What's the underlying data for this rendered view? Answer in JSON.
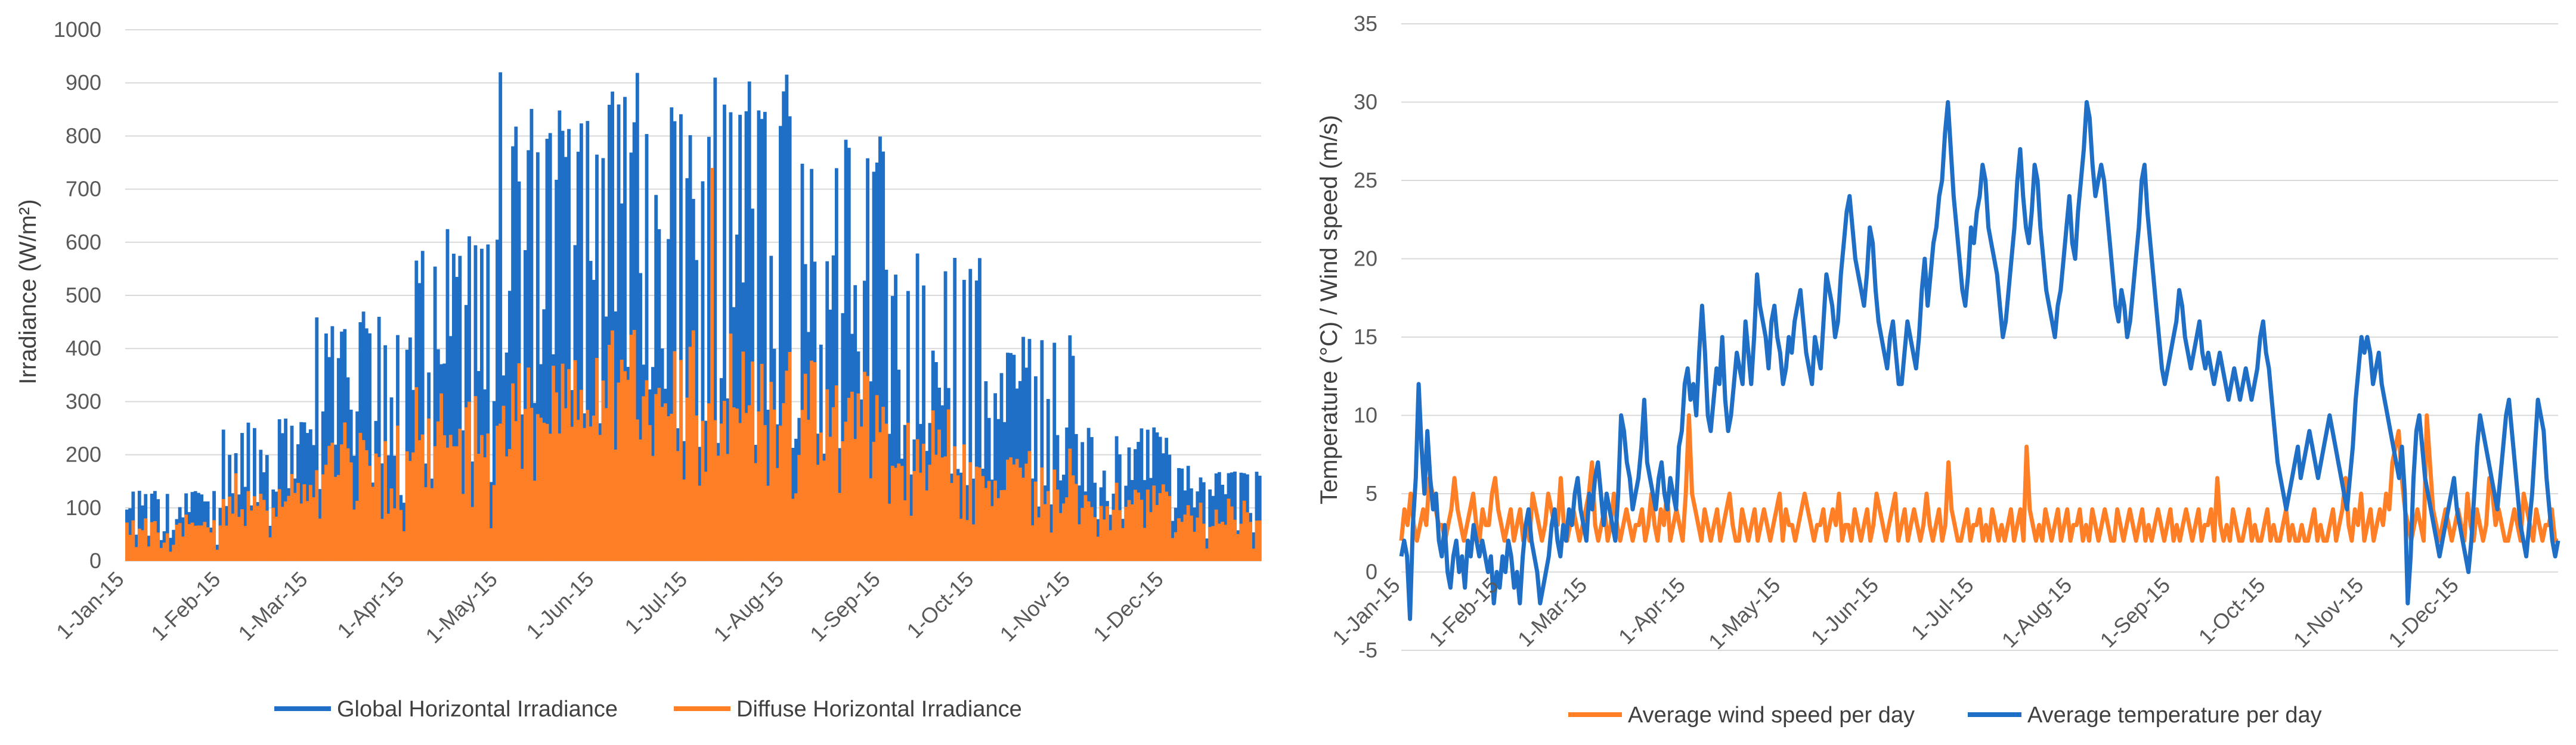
{
  "colors": {
    "blue": "#1f6fc6",
    "orange": "#ff7f27",
    "grid": "#d9d9d9",
    "text": "#595959"
  },
  "chart_data": [
    {
      "type": "area",
      "title": "",
      "xlabel": "",
      "ylabel": "Irradiance (W/m²)",
      "ylim": [
        0,
        1000
      ],
      "y_ticks": [
        0,
        100,
        200,
        300,
        400,
        500,
        600,
        700,
        800,
        900,
        1000
      ],
      "x_tick_labels": [
        "1-Jan-15",
        "1-Feb-15",
        "1-Mar-15",
        "1-Apr-15",
        "1-May-15",
        "1-Jun-15",
        "1-Jul-15",
        "1-Aug-15",
        "1-Sep-15",
        "1-Oct-15",
        "1-Nov-15",
        "1-Dec-15"
      ],
      "x_tick_days": [
        0,
        31,
        59,
        90,
        120,
        151,
        181,
        212,
        243,
        273,
        304,
        334
      ],
      "days": 365,
      "series": [
        {
          "name": "Global Horizontal Irradiance",
          "color": "#1f6fc6",
          "monthly_typical_max": [
            120,
            240,
            420,
            560,
            760,
            830,
            820,
            720,
            520,
            380,
            230,
            160
          ],
          "peak": 925
        },
        {
          "name": "Diffuse Horizontal Irradiance",
          "color": "#ff7f27",
          "monthly_typical_max": [
            90,
            150,
            220,
            280,
            340,
            380,
            360,
            320,
            250,
            190,
            130,
            100
          ],
          "peak": 740
        }
      ],
      "legend": "bottom"
    },
    {
      "type": "line",
      "title": "",
      "xlabel": "",
      "ylabel": "Temperature (°C) / Wind speed (m/s)",
      "ylim": [
        -5,
        35
      ],
      "y_ticks": [
        -5,
        0,
        5,
        10,
        15,
        20,
        25,
        30,
        35
      ],
      "x_tick_labels": [
        "1-Jan-15",
        "1-Feb-15",
        "1-Mar-15",
        "1-Apr-15",
        "1-May-15",
        "1-Jun-15",
        "1-Jul-15",
        "1-Aug-15",
        "1-Sep-15",
        "1-Oct-15",
        "1-Nov-15",
        "1-Dec-15"
      ],
      "x_tick_days": [
        0,
        31,
        59,
        90,
        120,
        151,
        181,
        212,
        243,
        273,
        304,
        334
      ],
      "days": 365,
      "series": [
        {
          "name": "Average wind speed per day",
          "color": "#ff7f27",
          "values": [
            2,
            4,
            3,
            5,
            3,
            2,
            3,
            4,
            3,
            6,
            5,
            4,
            3,
            3,
            2,
            3,
            4,
            6,
            4,
            3,
            2,
            3,
            4,
            5,
            3,
            2,
            4,
            3,
            3,
            5,
            6,
            4,
            3,
            2,
            3,
            4,
            2,
            3,
            4,
            2,
            3,
            2,
            5,
            4,
            3,
            2,
            3,
            5,
            4,
            3,
            3,
            6,
            3,
            2,
            3,
            4,
            3,
            2,
            3,
            4,
            5,
            7,
            3,
            2,
            3,
            4,
            2,
            3,
            5,
            3,
            2,
            3,
            4,
            3,
            2,
            3,
            3,
            4,
            2,
            3,
            5,
            3,
            2,
            4,
            3,
            5,
            2,
            3,
            4,
            3,
            2,
            5,
            10,
            5,
            4,
            3,
            2,
            4,
            3,
            2,
            3,
            4,
            2,
            3,
            4,
            5,
            3,
            2,
            2,
            4,
            3,
            2,
            3,
            4,
            2,
            3,
            4,
            3,
            2,
            3,
            4,
            5,
            2,
            4,
            3,
            3,
            2,
            3,
            4,
            5,
            4,
            3,
            2,
            3,
            3,
            4,
            2,
            3,
            4,
            3,
            5,
            2,
            3,
            3,
            2,
            4,
            3,
            2,
            3,
            4,
            2,
            3,
            5,
            4,
            3,
            2,
            3,
            4,
            5,
            2,
            3,
            4,
            2,
            3,
            4,
            3,
            2,
            3,
            5,
            3,
            2,
            3,
            4,
            2,
            3,
            7,
            4,
            3,
            2,
            2,
            3,
            4,
            2,
            3,
            3,
            4,
            2,
            3,
            2,
            4,
            3,
            2,
            3,
            2,
            3,
            4,
            2,
            3,
            4,
            2,
            8,
            4,
            3,
            2,
            3,
            2,
            4,
            3,
            2,
            3,
            4,
            2,
            3,
            4,
            2,
            3,
            3,
            4,
            2,
            3,
            2,
            4,
            3,
            2,
            3,
            4,
            3,
            2,
            2,
            4,
            3,
            2,
            3,
            4,
            3,
            2,
            3,
            4,
            2,
            3,
            2,
            3,
            4,
            3,
            2,
            3,
            4,
            2,
            3,
            2,
            3,
            4,
            3,
            2,
            3,
            4,
            2,
            3,
            3,
            4,
            2,
            6,
            3,
            2,
            3,
            2,
            4,
            3,
            2,
            2,
            3,
            4,
            2,
            3,
            2,
            2,
            3,
            4,
            2,
            3,
            2,
            2,
            3,
            4,
            2,
            3,
            2,
            2,
            3,
            2,
            2,
            3,
            4,
            2,
            3,
            2,
            2,
            3,
            4,
            2,
            3,
            4,
            6,
            3,
            2,
            4,
            3,
            5,
            2,
            3,
            4,
            2,
            3,
            4,
            3,
            5,
            4,
            7,
            8,
            9,
            6,
            4,
            3,
            2,
            3,
            4,
            3,
            2,
            10,
            7,
            4,
            3,
            2,
            3,
            4,
            3,
            2,
            3,
            4,
            3,
            2,
            5,
            3,
            2,
            4,
            3,
            2,
            3,
            6,
            5,
            3,
            4,
            3,
            2,
            2,
            3,
            4,
            3,
            2,
            5,
            4,
            3,
            2,
            4,
            3,
            2,
            3,
            3,
            4,
            2,
            2
          ]
        },
        {
          "name": "Average temperature per day",
          "color": "#1f6fc6",
          "values": [
            1,
            2,
            1,
            -3,
            3,
            6,
            12,
            8,
            5,
            9,
            6,
            4,
            5,
            2,
            1,
            3,
            0,
            -1,
            1,
            2,
            0,
            1,
            -1,
            2,
            1,
            3,
            2,
            1,
            2,
            1,
            0,
            1,
            -2,
            0,
            -1,
            1,
            0,
            2,
            1,
            -1,
            0,
            -2,
            1,
            3,
            4,
            2,
            1,
            0,
            -2,
            -1,
            0,
            1,
            3,
            4,
            2,
            1,
            3,
            2,
            4,
            3,
            5,
            6,
            4,
            3,
            2,
            5,
            4,
            6,
            7,
            5,
            3,
            5,
            4,
            3,
            2,
            5,
            10,
            9,
            7,
            6,
            4,
            5,
            6,
            8,
            11,
            7,
            6,
            5,
            4,
            6,
            7,
            5,
            4,
            6,
            5,
            4,
            8,
            9,
            12,
            13,
            11,
            12,
            10,
            14,
            17,
            14,
            10,
            9,
            11,
            13,
            12,
            15,
            11,
            9,
            10,
            12,
            14,
            13,
            12,
            16,
            14,
            12,
            15,
            19,
            17,
            16,
            15,
            13,
            16,
            17,
            15,
            14,
            12,
            13,
            15,
            14,
            16,
            17,
            18,
            16,
            14,
            13,
            12,
            15,
            14,
            13,
            16,
            19,
            18,
            17,
            15,
            16,
            19,
            21,
            23,
            24,
            22,
            20,
            19,
            18,
            17,
            19,
            22,
            21,
            18,
            16,
            15,
            14,
            13,
            15,
            16,
            14,
            12,
            12,
            14,
            16,
            15,
            14,
            13,
            15,
            18,
            20,
            17,
            19,
            21,
            22,
            24,
            25,
            28,
            30,
            27,
            24,
            22,
            20,
            18,
            17,
            19,
            22,
            21,
            23,
            24,
            26,
            25,
            22,
            21,
            20,
            19,
            17,
            15,
            16,
            18,
            20,
            22,
            25,
            27,
            24,
            22,
            21,
            23,
            26,
            25,
            22,
            20,
            18,
            17,
            16,
            15,
            17,
            18,
            20,
            22,
            24,
            21,
            20,
            23,
            25,
            27,
            30,
            29,
            26,
            24,
            25,
            26,
            25,
            23,
            21,
            19,
            17,
            16,
            18,
            17,
            15,
            16,
            18,
            20,
            22,
            25,
            26,
            23,
            21,
            19,
            17,
            15,
            13,
            12,
            13,
            14,
            15,
            16,
            18,
            17,
            15,
            14,
            13,
            14,
            15,
            16,
            14,
            13,
            14,
            13,
            12,
            13,
            14,
            13,
            12,
            11,
            12,
            13,
            12,
            11,
            12,
            13,
            12,
            11,
            12,
            13,
            15,
            16,
            14,
            13,
            11,
            9,
            7,
            6,
            5,
            4,
            5,
            6,
            7,
            8,
            6,
            7,
            8,
            9,
            8,
            7,
            6,
            7,
            8,
            9,
            10,
            9,
            8,
            7,
            6,
            5,
            4,
            6,
            8,
            11,
            13,
            15,
            14,
            15,
            14,
            12,
            13,
            14,
            12,
            11,
            10,
            9,
            8,
            7,
            6,
            8,
            5,
            -2,
            1,
            6,
            9,
            10,
            8,
            6,
            5,
            4,
            3,
            2,
            1,
            2,
            3,
            4,
            5,
            6,
            4,
            3,
            2,
            1,
            0,
            2,
            5,
            8,
            10,
            9,
            8,
            7,
            6,
            5,
            4,
            6,
            8,
            10,
            11,
            9,
            7,
            5,
            3,
            2,
            1,
            3,
            5,
            8,
            11,
            10,
            9,
            6,
            4,
            2,
            1,
            2
          ]
        }
      ],
      "legend": "bottom"
    }
  ],
  "legend_left": {
    "item1": "Global Horizontal Irradiance",
    "item2": "Diffuse Horizontal Irradiance"
  },
  "legend_right": {
    "item1": "Average wind speed per day",
    "item2": "Average temperature per day"
  },
  "axis_titles": {
    "left_y": "Irradiance (W/m²)",
    "right_y": "Temperature (°C) / Wind speed (m/s)"
  }
}
